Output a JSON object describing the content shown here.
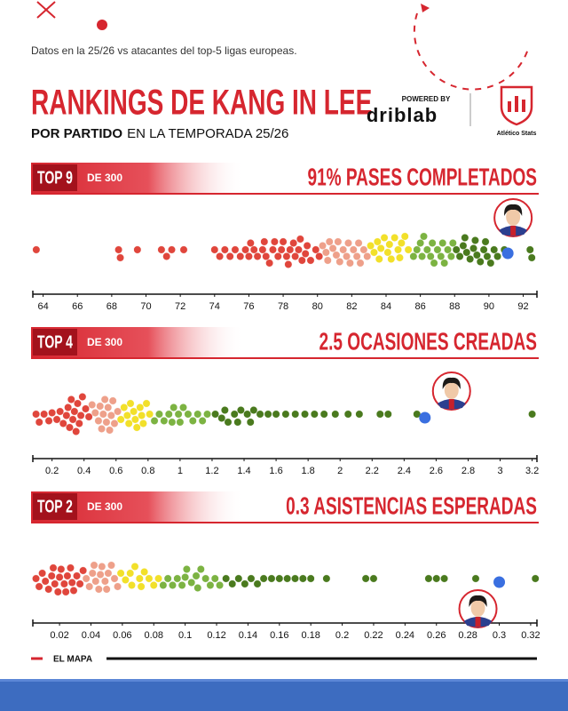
{
  "header": {
    "subtitle": "Datos en la 25/26 vs atacantes del top-5 ligas europeas.",
    "title": "RANKINGS DE KANG IN LEE",
    "period_bold": "POR PARTIDO",
    "period_rest": "EN LA TEMPORADA 25/26",
    "powered_by": "POWERED BY",
    "brand": "driblab",
    "partner": "Atlético Stats"
  },
  "chart_data": [
    {
      "type": "beeswarm",
      "rank_label": "TOP 9",
      "rank_of": "DE 300",
      "title": "91% PASES COMPLETADOS",
      "xlim": [
        63.4,
        92.8
      ],
      "xticks": [
        64,
        66,
        68,
        70,
        72,
        74,
        76,
        78,
        80,
        82,
        84,
        86,
        88,
        90,
        92
      ],
      "highlight": {
        "value": 91.1,
        "color": "#3a6fe0"
      },
      "groups": [
        {
          "color": "#e0463c",
          "values": [
            63.6,
            68.4,
            68.5,
            69.5,
            70.9,
            71.2,
            71.5,
            72.2,
            74.0,
            74.3,
            74.6,
            74.9,
            75.2,
            75.5,
            75.8,
            76.0,
            76.1,
            76.3,
            76.5,
            76.8,
            76.9,
            77.0,
            77.2,
            77.4,
            77.5,
            77.7,
            77.9,
            78.0,
            78.2,
            78.3,
            78.4,
            78.6,
            78.7,
            78.9,
            79.0,
            79.1,
            79.3,
            79.4,
            79.6,
            79.9,
            80.1
          ]
        },
        {
          "color": "#eea08a",
          "values": [
            80.3,
            80.5,
            80.6,
            80.7,
            80.9,
            81.1,
            81.2,
            81.3,
            81.5,
            81.7,
            81.8,
            81.9,
            82.1,
            82.3,
            82.4,
            82.5,
            82.7,
            82.9
          ]
        },
        {
          "color": "#f2e02a",
          "values": [
            83.1,
            83.3,
            83.5,
            83.6,
            83.7,
            83.9,
            84.1,
            84.2,
            84.3,
            84.5,
            84.7,
            84.8,
            84.9,
            85.1,
            85.3
          ]
        },
        {
          "color": "#7cb342",
          "values": [
            85.6,
            85.8,
            86.0,
            86.1,
            86.2,
            86.4,
            86.6,
            86.7,
            86.8,
            87.0,
            87.2,
            87.3,
            87.4,
            87.6,
            87.8,
            87.9
          ]
        },
        {
          "color": "#4a7a1e",
          "values": [
            88.1,
            88.3,
            88.5,
            88.6,
            88.7,
            88.9,
            89.1,
            89.2,
            89.3,
            89.5,
            89.7,
            89.8,
            89.9,
            90.1,
            90.3,
            90.5,
            90.9,
            92.4,
            92.5
          ]
        }
      ]
    },
    {
      "type": "beeswarm",
      "rank_label": "TOP 4",
      "rank_of": "DE 300",
      "title": "2.5 OCASIONES CREADAS",
      "xlim": [
        0.08,
        3.23
      ],
      "xticks": [
        0.2,
        0.4,
        0.6,
        0.8,
        1,
        1.2,
        1.4,
        1.6,
        1.8,
        2,
        2.2,
        2.4,
        2.6,
        2.8,
        3,
        3.2
      ],
      "highlight": {
        "value": 2.53,
        "color": "#3a6fe0"
      },
      "groups": [
        {
          "color": "#e0463c",
          "values": [
            0.1,
            0.12,
            0.15,
            0.18,
            0.2,
            0.23,
            0.25,
            0.27,
            0.29,
            0.3,
            0.31,
            0.32,
            0.33,
            0.34,
            0.35,
            0.36,
            0.37,
            0.38,
            0.39,
            0.41,
            0.43
          ]
        },
        {
          "color": "#eea08a",
          "values": [
            0.45,
            0.47,
            0.49,
            0.5,
            0.51,
            0.52,
            0.53,
            0.54,
            0.55,
            0.56,
            0.57,
            0.58,
            0.59,
            0.61
          ]
        },
        {
          "color": "#f2e02a",
          "values": [
            0.63,
            0.65,
            0.67,
            0.68,
            0.69,
            0.71,
            0.72,
            0.73,
            0.75,
            0.76,
            0.77,
            0.79,
            0.81
          ]
        },
        {
          "color": "#7cb342",
          "values": [
            0.84,
            0.87,
            0.9,
            0.93,
            0.95,
            0.96,
            0.99,
            1.0,
            1.02,
            1.05,
            1.08,
            1.11,
            1.14,
            1.17
          ]
        },
        {
          "color": "#4a7a1e",
          "values": [
            1.22,
            1.26,
            1.28,
            1.3,
            1.34,
            1.36,
            1.38,
            1.42,
            1.44,
            1.46,
            1.5,
            1.55,
            1.6,
            1.66,
            1.72,
            1.78,
            1.84,
            1.9,
            1.97,
            2.05,
            2.12,
            2.25,
            2.3,
            2.48,
            3.2
          ]
        }
      ]
    },
    {
      "type": "beeswarm",
      "rank_label": "TOP 2",
      "rank_of": "DE 300",
      "title": "0.3 ASISTENCIAS ESPERADAS",
      "xlim": [
        0.003,
        0.324
      ],
      "xticks": [
        0.02,
        0.04,
        0.06,
        0.08,
        0.1,
        0.12,
        0.14,
        0.16,
        0.18,
        0.2,
        0.22,
        0.24,
        0.26,
        0.28,
        0.3,
        0.32
      ],
      "highlight": {
        "value": 0.3,
        "color": "#3a6fe0"
      },
      "groups": [
        {
          "color": "#e0463c",
          "values": [
            0.005,
            0.007,
            0.009,
            0.011,
            0.013,
            0.015,
            0.016,
            0.017,
            0.019,
            0.02,
            0.021,
            0.023,
            0.024,
            0.025,
            0.027,
            0.028,
            0.029,
            0.031,
            0.033,
            0.035
          ]
        },
        {
          "color": "#eea08a",
          "values": [
            0.037,
            0.039,
            0.041,
            0.042,
            0.043,
            0.045,
            0.046,
            0.047,
            0.049,
            0.05,
            0.051,
            0.053,
            0.055,
            0.057
          ]
        },
        {
          "color": "#f2e02a",
          "values": [
            0.059,
            0.062,
            0.065,
            0.066,
            0.068,
            0.071,
            0.072,
            0.074,
            0.077,
            0.08,
            0.083
          ]
        },
        {
          "color": "#7cb342",
          "values": [
            0.086,
            0.089,
            0.092,
            0.095,
            0.098,
            0.1,
            0.101,
            0.104,
            0.107,
            0.108,
            0.11,
            0.113,
            0.116,
            0.119,
            0.122
          ]
        },
        {
          "color": "#4a7a1e",
          "values": [
            0.126,
            0.13,
            0.134,
            0.138,
            0.142,
            0.146,
            0.15,
            0.155,
            0.16,
            0.165,
            0.17,
            0.175,
            0.18,
            0.19,
            0.215,
            0.22,
            0.255,
            0.26,
            0.265,
            0.285,
            0.323
          ]
        }
      ]
    }
  ],
  "footer": {
    "label": "EL MAPA"
  }
}
